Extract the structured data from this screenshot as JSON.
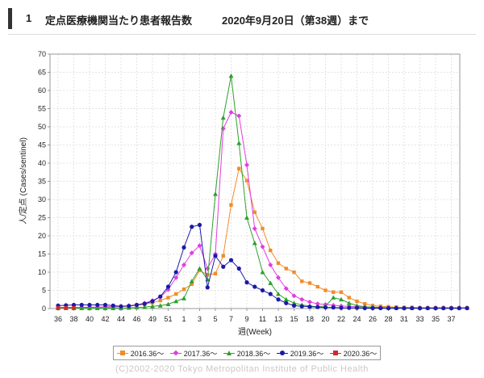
{
  "header": {
    "number": "1",
    "title": "定点医療機関当たり患者報告数",
    "period": "2020年9月20日（第38週）まで"
  },
  "chart_data": {
    "type": "line",
    "ylabel": "人/定点 (Cases/sentinel)",
    "xlabel": "週(Week)",
    "ylim": [
      0,
      70
    ],
    "yticks": [
      0,
      5,
      10,
      15,
      20,
      25,
      30,
      35,
      40,
      45,
      50,
      55,
      60,
      65,
      70
    ],
    "xtick_labels": [
      "36",
      "38",
      "40",
      "42",
      "44",
      "46",
      "49",
      "51",
      "1",
      "3",
      "5",
      "7",
      "9",
      "11",
      "13",
      "15",
      "18",
      "20",
      "22",
      "24",
      "26",
      "28",
      "31",
      "33",
      "35",
      "37"
    ],
    "grid": true,
    "legend_position": "bottom",
    "series": [
      {
        "name": "2016.36～",
        "color": "#f28c28",
        "marker": "square",
        "values": [
          0.2,
          0.3,
          0.3,
          0.3,
          0.3,
          0.3,
          0.3,
          0.4,
          0.5,
          0.7,
          0.9,
          1.2,
          1.6,
          2.2,
          3,
          4,
          5.3,
          6.7,
          10.5,
          9.3,
          9.6,
          14.5,
          28.5,
          38.5,
          35.2,
          26.5,
          22,
          16,
          12.5,
          11,
          10,
          7.5,
          7,
          6,
          5,
          4.5,
          4.5,
          3,
          2,
          1.3,
          0.8,
          0.6,
          0.5,
          0.4,
          0.3,
          0.3,
          0.2,
          0.2,
          0.2,
          0.2,
          0.2,
          0.2,
          0.2
        ]
      },
      {
        "name": "2017.36～",
        "color": "#e23ce2",
        "marker": "diamond",
        "values": [
          0.3,
          0.3,
          0.3,
          0.3,
          0.4,
          0.4,
          0.5,
          0.5,
          0.6,
          0.8,
          1,
          1.5,
          2.2,
          3.2,
          5.2,
          8.5,
          12,
          15.3,
          17.3,
          11,
          15,
          49.5,
          54,
          53,
          39.5,
          22,
          17,
          12,
          8.5,
          5.5,
          3.5,
          2.5,
          1.8,
          1.3,
          1.1,
          0.9,
          0.7,
          0.6,
          0.5,
          0.4,
          0.3,
          0.3,
          0.2,
          0.2,
          0.2,
          0.2,
          0.2,
          0.2,
          0.2,
          0.2,
          0.2,
          0.2,
          0.2
        ]
      },
      {
        "name": "2018.36～",
        "color": "#2ca02c",
        "marker": "triangle",
        "values": [
          0.1,
          0.1,
          0.1,
          0.1,
          0.1,
          0.1,
          0.1,
          0.1,
          0.1,
          0.2,
          0.3,
          0.4,
          0.6,
          0.8,
          1.2,
          2,
          2.8,
          7.5,
          11,
          8,
          31.5,
          52.5,
          64,
          45.5,
          25,
          18,
          10,
          7,
          4,
          2.5,
          1.5,
          1,
          0.7,
          0.5,
          0.7,
          3,
          2.5,
          1.5,
          0.8,
          0.5,
          0.4,
          0.3,
          0.2,
          0.2,
          0.2,
          0.2,
          0.2,
          0.2,
          0.2,
          0.2,
          0.2,
          0.2,
          0.2
        ]
      },
      {
        "name": "2019.36～",
        "color": "#1a1aa8",
        "marker": "circle",
        "values": [
          0.8,
          0.9,
          1,
          1,
          1,
          1,
          1,
          0.8,
          0.6,
          0.7,
          1,
          1.3,
          2,
          3.3,
          6,
          10,
          16.8,
          22.5,
          23,
          5.8,
          14.5,
          11.5,
          13.3,
          11,
          7.2,
          6,
          5,
          4,
          2.5,
          1.5,
          0.8,
          0.6,
          0.5,
          0.4,
          0.3,
          0.3,
          0.2,
          0.2,
          0.2,
          0.1,
          0.1,
          0.1,
          0.1,
          0.1,
          0.1,
          0.1,
          0.1,
          0.1,
          0.1,
          0.1,
          0.1,
          0.1,
          0.1
        ]
      },
      {
        "name": "2020.36～",
        "color": "#d62728",
        "marker": "square",
        "values": [
          0.2,
          0.2,
          0.2
        ]
      }
    ]
  },
  "copyright": "(C)2002-2020 Tokyo Metropolitan Institute of Public Health"
}
